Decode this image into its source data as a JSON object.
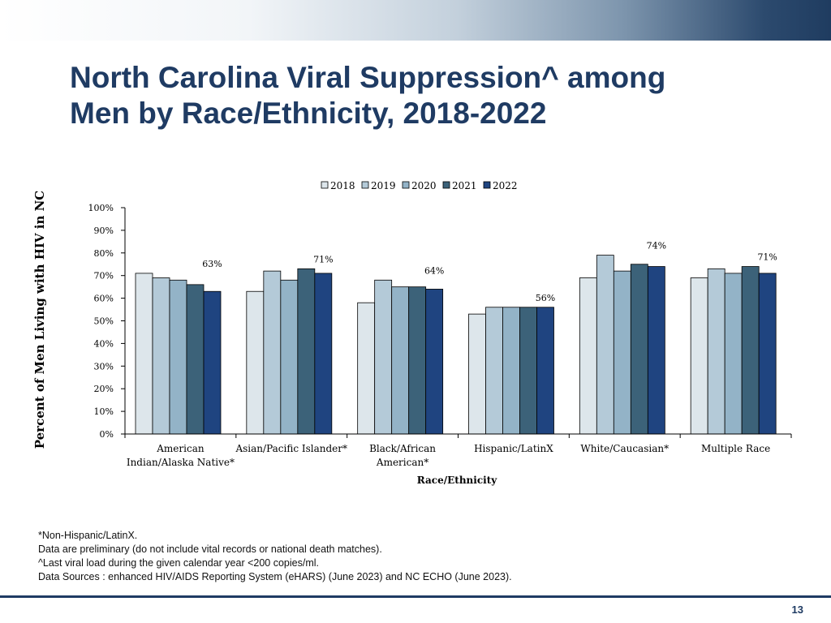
{
  "slide": {
    "title_line1": "North Carolina Viral Suppression^ among",
    "title_line2": "Men by Race/Ethnicity, 2018-2022",
    "page_number": "13"
  },
  "footnotes": [
    "*Non-Hispanic/LatinX.",
    "Data are preliminary (do not include vital records or national death matches).",
    "^Last viral load during the given calendar year <200 copies/ml.",
    "Data Sources : enhanced HIV/AIDS Reporting System (eHARS) (June 2023) and NC ECHO (June 2023)."
  ],
  "chart_data": {
    "type": "bar",
    "title": "",
    "xlabel": "Race/Ethnicity",
    "ylabel": "Percent of Men Living with HIV in NC",
    "ylim": [
      0,
      100
    ],
    "yticks": [
      "0%",
      "10%",
      "20%",
      "30%",
      "40%",
      "50%",
      "60%",
      "70%",
      "80%",
      "90%",
      "100%"
    ],
    "grid": false,
    "legend_position": "top",
    "categories": [
      [
        "American",
        "Indian/Alaska Native*"
      ],
      [
        "Asian/Pacific Islander*"
      ],
      [
        "Black/African",
        "American*"
      ],
      [
        "Hispanic/LatinX"
      ],
      [
        "White/Caucasian*"
      ],
      [
        "Multiple Race"
      ]
    ],
    "series": [
      {
        "name": "2018",
        "color": "#dde6eb",
        "values": [
          71,
          63,
          58,
          53,
          69,
          69
        ]
      },
      {
        "name": "2019",
        "color": "#b4cad8",
        "values": [
          69,
          72,
          68,
          56,
          79,
          73
        ]
      },
      {
        "name": "2020",
        "color": "#93b3c7",
        "values": [
          68,
          68,
          65,
          56,
          72,
          71
        ]
      },
      {
        "name": "2021",
        "color": "#3c6279",
        "values": [
          66,
          73,
          65,
          56,
          75,
          74
        ]
      },
      {
        "name": "2022",
        "color": "#1f4480",
        "values": [
          63,
          71,
          64,
          56,
          74,
          71
        ]
      }
    ],
    "data_labels": {
      "series": "2022",
      "labels": [
        "63%",
        "71%",
        "64%",
        "56%",
        "74%",
        "71%"
      ]
    }
  }
}
